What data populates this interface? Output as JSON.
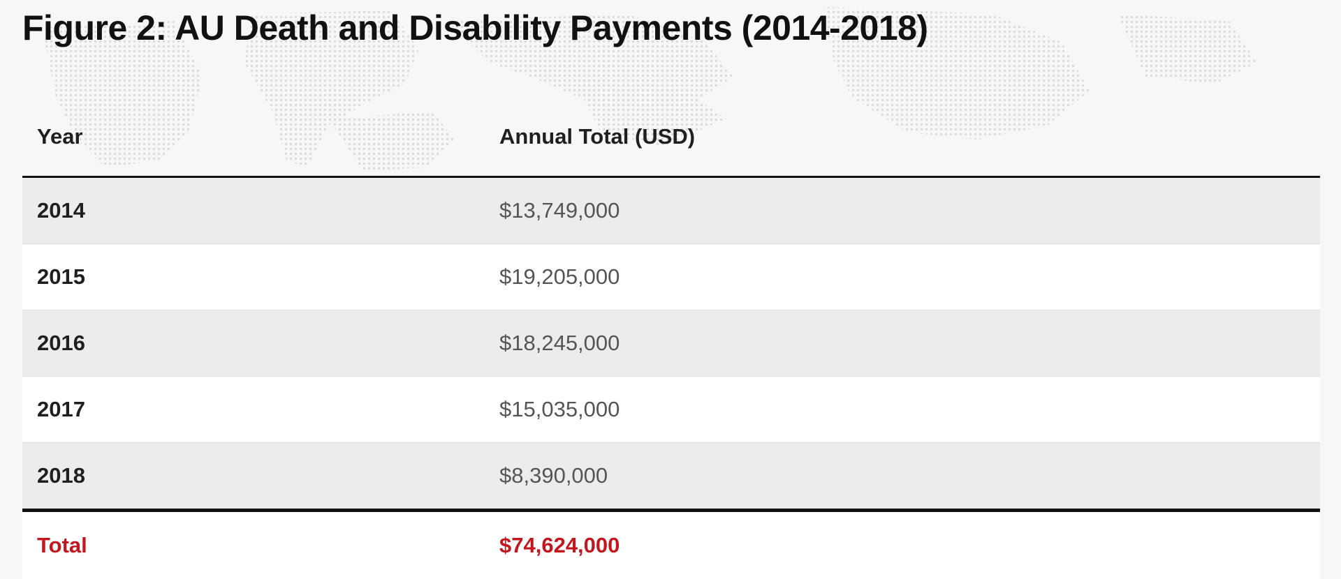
{
  "figure": {
    "title": "Figure 2: AU Death and Disability Payments (2014-2018)"
  },
  "colors": {
    "header_rule": "#111111",
    "row_band": "#ececec",
    "total_text": "#c3171f"
  },
  "chart_data": {
    "type": "table",
    "title": "Figure 2: AU Death and Disability Payments (2014-2018)",
    "columns": [
      "Year",
      "Annual Total (USD)"
    ],
    "rows": [
      {
        "year": "2014",
        "amount": "$13,749,000",
        "value": 13749000
      },
      {
        "year": "2015",
        "amount": "$19,205,000",
        "value": 19205000
      },
      {
        "year": "2016",
        "amount": "$18,245,000",
        "value": 18245000
      },
      {
        "year": "2017",
        "amount": "$15,035,000",
        "value": 15035000
      },
      {
        "year": "2018",
        "amount": "$8,390,000",
        "value": 8390000
      }
    ],
    "total": {
      "label": "Total",
      "amount": "$74,624,000",
      "value": 74624000
    }
  }
}
